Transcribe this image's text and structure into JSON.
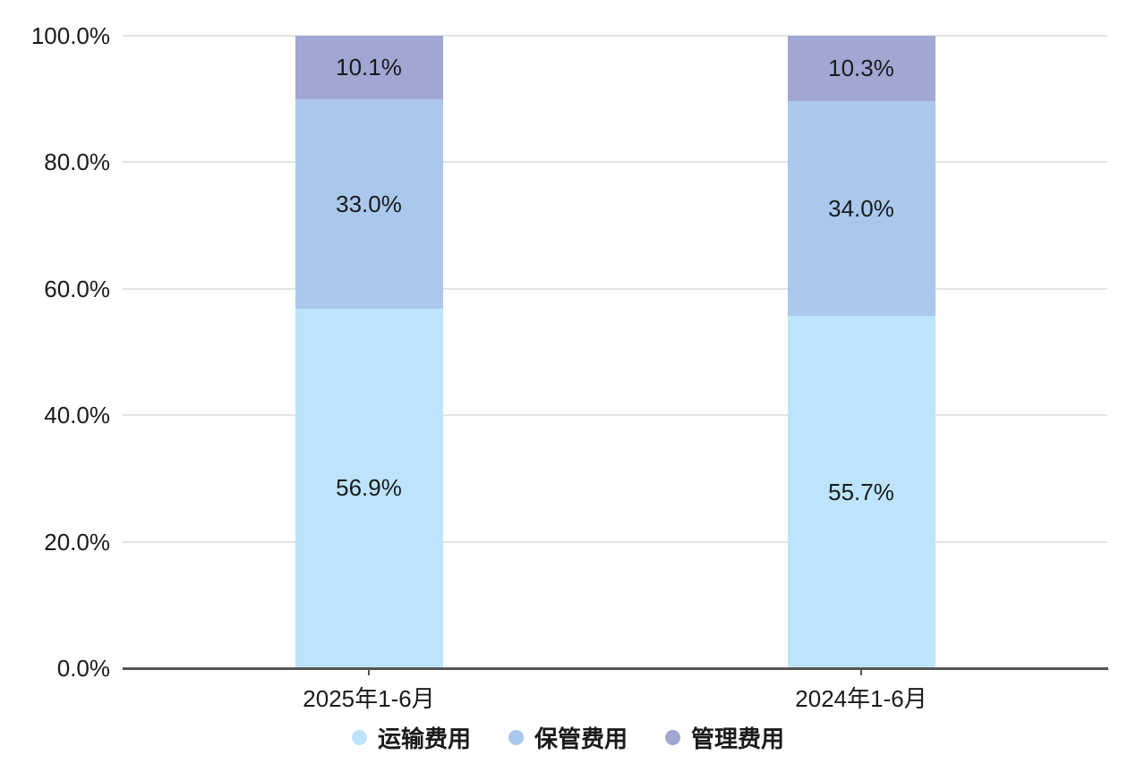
{
  "chart_data": {
    "type": "bar",
    "variant": "stacked-percent-column",
    "title": "",
    "categories": [
      "2025年1-6月",
      "2024年1-6月"
    ],
    "series": [
      {
        "name": "运输费用",
        "color": "#bde4fc",
        "values": [
          56.9,
          55.7
        ],
        "labels": [
          "56.9%",
          "55.7%"
        ]
      },
      {
        "name": "保管费用",
        "color": "#a9c8eb",
        "values": [
          33.0,
          34.0
        ],
        "labels": [
          "33.0%",
          "34.0%"
        ]
      },
      {
        "name": "管理费用",
        "color": "#a1a7d3",
        "values": [
          10.1,
          10.3
        ],
        "labels": [
          "10.1%",
          "10.3%"
        ]
      }
    ],
    "y_axis": {
      "min": 0,
      "max": 100,
      "step": 20,
      "tick_labels": [
        "0.0%",
        "20.0%",
        "40.0%",
        "60.0%",
        "80.0%",
        "100.0%"
      ]
    },
    "grid": true,
    "legend_position": "bottom",
    "colors": {
      "background": "#ffffff",
      "gridline": "#e3e3e3",
      "axis_line": "#555555",
      "text": "#1a1a1a"
    }
  }
}
